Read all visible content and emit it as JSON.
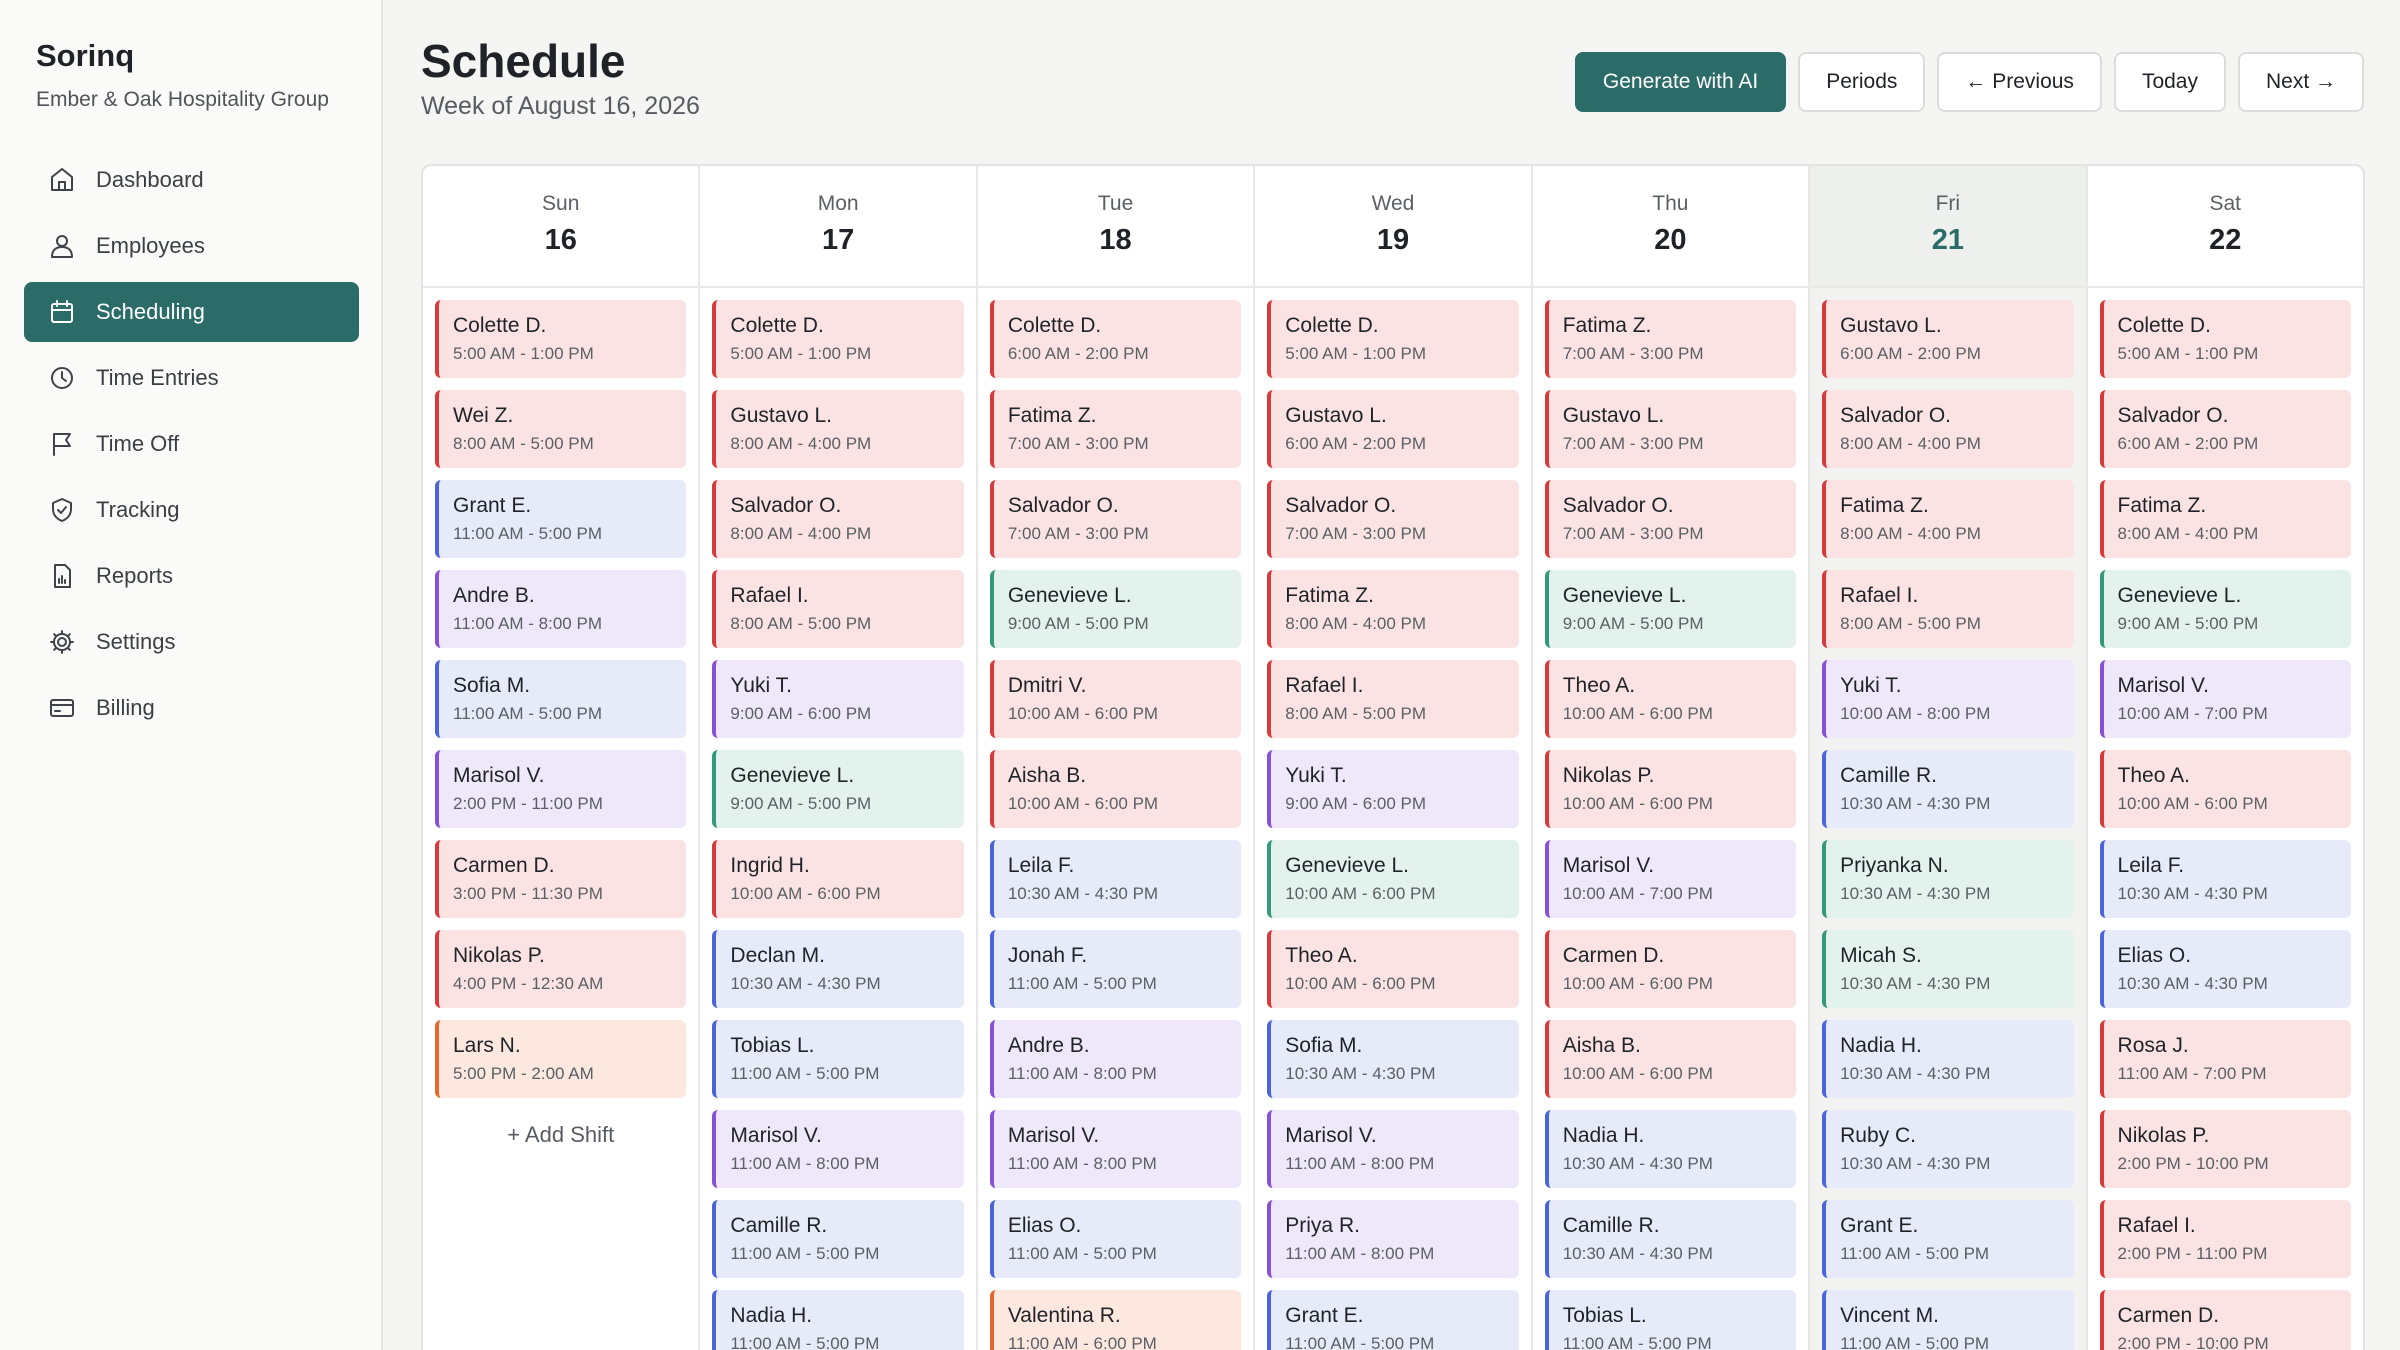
{
  "app": {
    "name": "Sorinq",
    "org": "Ember & Oak Hospitality Group"
  },
  "nav": [
    {
      "label": "Dashboard",
      "icon": "home-icon",
      "active": false
    },
    {
      "label": "Employees",
      "icon": "users-icon",
      "active": false
    },
    {
      "label": "Scheduling",
      "icon": "calendar-icon",
      "active": true
    },
    {
      "label": "Time Entries",
      "icon": "clock-icon",
      "active": false
    },
    {
      "label": "Time Off",
      "icon": "flag-icon",
      "active": false
    },
    {
      "label": "Tracking",
      "icon": "shield-check-icon",
      "active": false
    },
    {
      "label": "Reports",
      "icon": "document-chart-icon",
      "active": false
    },
    {
      "label": "Settings",
      "icon": "gear-icon",
      "active": false
    },
    {
      "label": "Billing",
      "icon": "credit-card-icon",
      "active": false
    }
  ],
  "header": {
    "title": "Schedule",
    "subtitle": "Week of August 16, 2026"
  },
  "toolbar": {
    "generate": "Generate with AI",
    "periods": "Periods",
    "previous": "← Previous",
    "today": "Today",
    "next": "Next →"
  },
  "colors": {
    "accent": "#2b6b68",
    "red": "#d63a3a",
    "blue": "#4a64d9",
    "purple": "#8750d6",
    "green": "#33997a",
    "orange": "#e36a2c"
  },
  "add_shift_label": "+ Add Shift",
  "days": [
    {
      "dow": "Sun",
      "num": "16",
      "today": false,
      "add_shift": true,
      "shifts": [
        {
          "name": "Colette D.",
          "time": "5:00 AM - 1:00 PM",
          "color": "red"
        },
        {
          "name": "Wei Z.",
          "time": "8:00 AM - 5:00 PM",
          "color": "red"
        },
        {
          "name": "Grant E.",
          "time": "11:00 AM - 5:00 PM",
          "color": "blue"
        },
        {
          "name": "Andre B.",
          "time": "11:00 AM - 8:00 PM",
          "color": "purple"
        },
        {
          "name": "Sofia M.",
          "time": "11:00 AM - 5:00 PM",
          "color": "blue"
        },
        {
          "name": "Marisol V.",
          "time": "2:00 PM - 11:00 PM",
          "color": "purple"
        },
        {
          "name": "Carmen D.",
          "time": "3:00 PM - 11:30 PM",
          "color": "red"
        },
        {
          "name": "Nikolas P.",
          "time": "4:00 PM - 12:30 AM",
          "color": "red"
        },
        {
          "name": "Lars N.",
          "time": "5:00 PM - 2:00 AM",
          "color": "orange"
        }
      ]
    },
    {
      "dow": "Mon",
      "num": "17",
      "today": false,
      "add_shift": false,
      "shifts": [
        {
          "name": "Colette D.",
          "time": "5:00 AM - 1:00 PM",
          "color": "red"
        },
        {
          "name": "Gustavo L.",
          "time": "8:00 AM - 4:00 PM",
          "color": "red"
        },
        {
          "name": "Salvador O.",
          "time": "8:00 AM - 4:00 PM",
          "color": "red"
        },
        {
          "name": "Rafael I.",
          "time": "8:00 AM - 5:00 PM",
          "color": "red"
        },
        {
          "name": "Yuki T.",
          "time": "9:00 AM - 6:00 PM",
          "color": "purple"
        },
        {
          "name": "Genevieve L.",
          "time": "9:00 AM - 5:00 PM",
          "color": "green"
        },
        {
          "name": "Ingrid H.",
          "time": "10:00 AM - 6:00 PM",
          "color": "red"
        },
        {
          "name": "Declan M.",
          "time": "10:30 AM - 4:30 PM",
          "color": "blue"
        },
        {
          "name": "Tobias L.",
          "time": "11:00 AM - 5:00 PM",
          "color": "blue"
        },
        {
          "name": "Marisol V.",
          "time": "11:00 AM - 8:00 PM",
          "color": "purple"
        },
        {
          "name": "Camille R.",
          "time": "11:00 AM - 5:00 PM",
          "color": "blue"
        },
        {
          "name": "Nadia H.",
          "time": "11:00 AM - 5:00 PM",
          "color": "blue"
        }
      ]
    },
    {
      "dow": "Tue",
      "num": "18",
      "today": false,
      "add_shift": false,
      "shifts": [
        {
          "name": "Colette D.",
          "time": "6:00 AM - 2:00 PM",
          "color": "red"
        },
        {
          "name": "Fatima Z.",
          "time": "7:00 AM - 3:00 PM",
          "color": "red"
        },
        {
          "name": "Salvador O.",
          "time": "7:00 AM - 3:00 PM",
          "color": "red"
        },
        {
          "name": "Genevieve L.",
          "time": "9:00 AM - 5:00 PM",
          "color": "green"
        },
        {
          "name": "Dmitri V.",
          "time": "10:00 AM - 6:00 PM",
          "color": "red"
        },
        {
          "name": "Aisha B.",
          "time": "10:00 AM - 6:00 PM",
          "color": "red"
        },
        {
          "name": "Leila F.",
          "time": "10:30 AM - 4:30 PM",
          "color": "blue"
        },
        {
          "name": "Jonah F.",
          "time": "11:00 AM - 5:00 PM",
          "color": "blue"
        },
        {
          "name": "Andre B.",
          "time": "11:00 AM - 8:00 PM",
          "color": "purple"
        },
        {
          "name": "Marisol V.",
          "time": "11:00 AM - 8:00 PM",
          "color": "purple"
        },
        {
          "name": "Elias O.",
          "time": "11:00 AM - 5:00 PM",
          "color": "blue"
        },
        {
          "name": "Valentina R.",
          "time": "11:00 AM - 6:00 PM",
          "color": "orange"
        }
      ]
    },
    {
      "dow": "Wed",
      "num": "19",
      "today": false,
      "add_shift": false,
      "shifts": [
        {
          "name": "Colette D.",
          "time": "5:00 AM - 1:00 PM",
          "color": "red"
        },
        {
          "name": "Gustavo L.",
          "time": "6:00 AM - 2:00 PM",
          "color": "red"
        },
        {
          "name": "Salvador O.",
          "time": "7:00 AM - 3:00 PM",
          "color": "red"
        },
        {
          "name": "Fatima Z.",
          "time": "8:00 AM - 4:00 PM",
          "color": "red"
        },
        {
          "name": "Rafael I.",
          "time": "8:00 AM - 5:00 PM",
          "color": "red"
        },
        {
          "name": "Yuki T.",
          "time": "9:00 AM - 6:00 PM",
          "color": "purple"
        },
        {
          "name": "Genevieve L.",
          "time": "10:00 AM - 6:00 PM",
          "color": "green"
        },
        {
          "name": "Theo A.",
          "time": "10:00 AM - 6:00 PM",
          "color": "red"
        },
        {
          "name": "Sofia M.",
          "time": "10:30 AM - 4:30 PM",
          "color": "blue"
        },
        {
          "name": "Marisol V.",
          "time": "11:00 AM - 8:00 PM",
          "color": "purple"
        },
        {
          "name": "Priya R.",
          "time": "11:00 AM - 8:00 PM",
          "color": "purple"
        },
        {
          "name": "Grant E.",
          "time": "11:00 AM - 5:00 PM",
          "color": "blue"
        }
      ]
    },
    {
      "dow": "Thu",
      "num": "20",
      "today": false,
      "add_shift": false,
      "shifts": [
        {
          "name": "Fatima Z.",
          "time": "7:00 AM - 3:00 PM",
          "color": "red"
        },
        {
          "name": "Gustavo L.",
          "time": "7:00 AM - 3:00 PM",
          "color": "red"
        },
        {
          "name": "Salvador O.",
          "time": "7:00 AM - 3:00 PM",
          "color": "red"
        },
        {
          "name": "Genevieve L.",
          "time": "9:00 AM - 5:00 PM",
          "color": "green"
        },
        {
          "name": "Theo A.",
          "time": "10:00 AM - 6:00 PM",
          "color": "red"
        },
        {
          "name": "Nikolas P.",
          "time": "10:00 AM - 6:00 PM",
          "color": "red"
        },
        {
          "name": "Marisol V.",
          "time": "10:00 AM - 7:00 PM",
          "color": "purple"
        },
        {
          "name": "Carmen D.",
          "time": "10:00 AM - 6:00 PM",
          "color": "red"
        },
        {
          "name": "Aisha B.",
          "time": "10:00 AM - 6:00 PM",
          "color": "red"
        },
        {
          "name": "Nadia H.",
          "time": "10:30 AM - 4:30 PM",
          "color": "blue"
        },
        {
          "name": "Camille R.",
          "time": "10:30 AM - 4:30 PM",
          "color": "blue"
        },
        {
          "name": "Tobias L.",
          "time": "11:00 AM - 5:00 PM",
          "color": "blue"
        }
      ]
    },
    {
      "dow": "Fri",
      "num": "21",
      "today": true,
      "add_shift": false,
      "shifts": [
        {
          "name": "Gustavo L.",
          "time": "6:00 AM - 2:00 PM",
          "color": "red"
        },
        {
          "name": "Salvador O.",
          "time": "8:00 AM - 4:00 PM",
          "color": "red"
        },
        {
          "name": "Fatima Z.",
          "time": "8:00 AM - 4:00 PM",
          "color": "red"
        },
        {
          "name": "Rafael I.",
          "time": "8:00 AM - 5:00 PM",
          "color": "red"
        },
        {
          "name": "Yuki T.",
          "time": "10:00 AM - 8:00 PM",
          "color": "purple"
        },
        {
          "name": "Camille R.",
          "time": "10:30 AM - 4:30 PM",
          "color": "blue"
        },
        {
          "name": "Priyanka N.",
          "time": "10:30 AM - 4:30 PM",
          "color": "green"
        },
        {
          "name": "Micah S.",
          "time": "10:30 AM - 4:30 PM",
          "color": "green"
        },
        {
          "name": "Nadia H.",
          "time": "10:30 AM - 4:30 PM",
          "color": "blue"
        },
        {
          "name": "Ruby C.",
          "time": "10:30 AM - 4:30 PM",
          "color": "blue"
        },
        {
          "name": "Grant E.",
          "time": "11:00 AM - 5:00 PM",
          "color": "blue"
        },
        {
          "name": "Vincent M.",
          "time": "11:00 AM - 5:00 PM",
          "color": "blue"
        }
      ]
    },
    {
      "dow": "Sat",
      "num": "22",
      "today": false,
      "add_shift": false,
      "shifts": [
        {
          "name": "Colette D.",
          "time": "5:00 AM - 1:00 PM",
          "color": "red"
        },
        {
          "name": "Salvador O.",
          "time": "6:00 AM - 2:00 PM",
          "color": "red"
        },
        {
          "name": "Fatima Z.",
          "time": "8:00 AM - 4:00 PM",
          "color": "red"
        },
        {
          "name": "Genevieve L.",
          "time": "9:00 AM - 5:00 PM",
          "color": "green"
        },
        {
          "name": "Marisol V.",
          "time": "10:00 AM - 7:00 PM",
          "color": "purple"
        },
        {
          "name": "Theo A.",
          "time": "10:00 AM - 6:00 PM",
          "color": "red"
        },
        {
          "name": "Leila F.",
          "time": "10:30 AM - 4:30 PM",
          "color": "blue"
        },
        {
          "name": "Elias O.",
          "time": "10:30 AM - 4:30 PM",
          "color": "blue"
        },
        {
          "name": "Rosa J.",
          "time": "11:00 AM - 7:00 PM",
          "color": "red"
        },
        {
          "name": "Nikolas P.",
          "time": "2:00 PM - 10:00 PM",
          "color": "red"
        },
        {
          "name": "Rafael I.",
          "time": "2:00 PM - 11:00 PM",
          "color": "red"
        },
        {
          "name": "Carmen D.",
          "time": "2:00 PM - 10:00 PM",
          "color": "red"
        }
      ]
    }
  ]
}
